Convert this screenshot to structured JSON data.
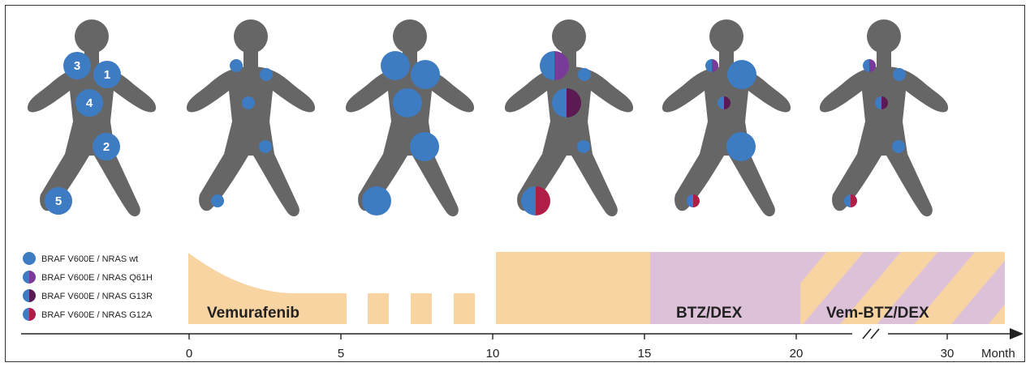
{
  "colors": {
    "body": "#666666",
    "wt": "#3d7cc3",
    "q61h": "#7a3a99",
    "g13r": "#5a1a52",
    "g12a": "#b01e47",
    "vemurafenib": "#f9d4a3",
    "btz_dex": "#dcc1d9"
  },
  "legend": [
    {
      "label": "BRAF V600E / NRAS wt",
      "mutation": "wt"
    },
    {
      "label": "BRAF V600E / NRAS Q61H",
      "mutation": "q61h"
    },
    {
      "label": "BRAF V600E / NRAS G13R",
      "mutation": "g13r"
    },
    {
      "label": "BRAF V600E / NRAS G12A",
      "mutation": "g12a"
    }
  ],
  "site_labels": [
    "1",
    "2",
    "3",
    "4",
    "5"
  ],
  "figures": [
    {
      "lesions": [
        {
          "site": "3",
          "size": "medium",
          "mutation": "wt"
        },
        {
          "site": "1",
          "size": "medium",
          "mutation": "wt"
        },
        {
          "site": "4",
          "size": "medium",
          "mutation": "wt"
        },
        {
          "site": "2",
          "size": "medium",
          "mutation": "wt"
        },
        {
          "site": "5",
          "size": "medium",
          "mutation": "wt"
        }
      ]
    },
    {
      "lesions": [
        {
          "site": "3",
          "size": "small",
          "mutation": "wt"
        },
        {
          "site": "1",
          "size": "small",
          "mutation": "wt"
        },
        {
          "site": "4",
          "size": "small",
          "mutation": "wt"
        },
        {
          "site": "2",
          "size": "small",
          "mutation": "wt"
        },
        {
          "site": "5",
          "size": "small",
          "mutation": "wt"
        }
      ]
    },
    {
      "lesions": [
        {
          "site": "3",
          "size": "large",
          "mutation": "wt"
        },
        {
          "site": "1",
          "size": "large",
          "mutation": "wt"
        },
        {
          "site": "4",
          "size": "large",
          "mutation": "wt"
        },
        {
          "site": "2",
          "size": "large",
          "mutation": "wt"
        },
        {
          "site": "5",
          "size": "large",
          "mutation": "wt"
        }
      ]
    },
    {
      "lesions": [
        {
          "site": "3",
          "size": "large",
          "mutation": "q61h"
        },
        {
          "site": "1",
          "size": "small",
          "mutation": "wt"
        },
        {
          "site": "4",
          "size": "large",
          "mutation": "g13r"
        },
        {
          "site": "2",
          "size": "small",
          "mutation": "wt"
        },
        {
          "site": "5",
          "size": "large",
          "mutation": "g12a"
        }
      ]
    },
    {
      "lesions": [
        {
          "site": "3",
          "size": "small",
          "mutation": "q61h"
        },
        {
          "site": "1",
          "size": "large",
          "mutation": "wt"
        },
        {
          "site": "4",
          "size": "small",
          "mutation": "g13r"
        },
        {
          "site": "2",
          "size": "large",
          "mutation": "wt"
        },
        {
          "site": "5",
          "size": "small",
          "mutation": "g12a"
        }
      ]
    },
    {
      "lesions": [
        {
          "site": "3",
          "size": "small",
          "mutation": "q61h"
        },
        {
          "site": "1",
          "size": "small",
          "mutation": "wt"
        },
        {
          "site": "4",
          "size": "small",
          "mutation": "g13r"
        },
        {
          "site": "2",
          "size": "small",
          "mutation": "wt"
        },
        {
          "site": "5",
          "size": "small",
          "mutation": "g12a"
        }
      ]
    }
  ],
  "timeline": {
    "unit": "Month",
    "ticks": [
      "0",
      "5",
      "10",
      "15",
      "20",
      "30"
    ],
    "therapies": [
      {
        "label": "Vemurafenib",
        "start": 0,
        "end": 10
      },
      {
        "label": "BTZ/DEX",
        "start": 15,
        "end": 20
      },
      {
        "label": "Vem-BTZ/DEX",
        "start": 20,
        "end": 34
      }
    ]
  }
}
